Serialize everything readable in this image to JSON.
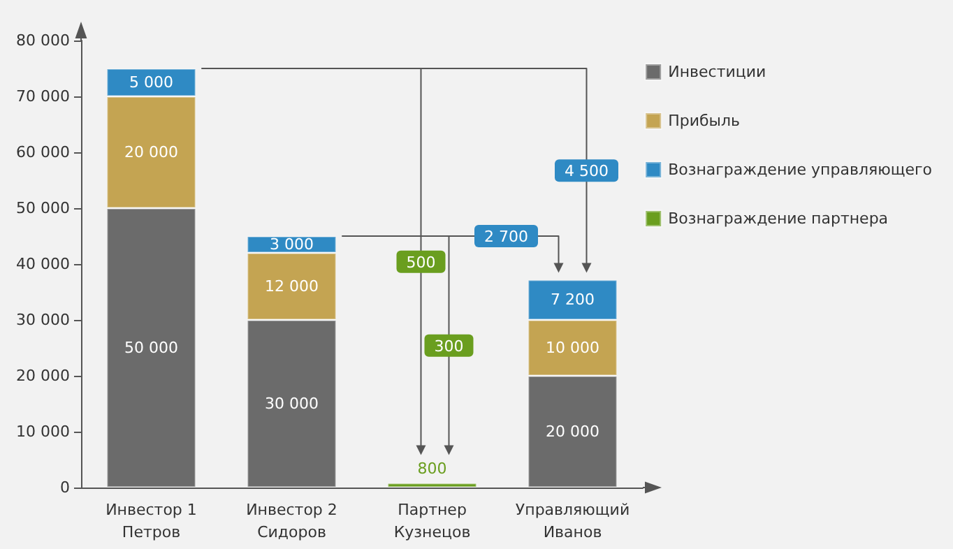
{
  "chart_data": {
    "type": "bar",
    "stacked": true,
    "categories": [
      "Инвестор 1\nПетров",
      "Инвестор 2\nСидоров",
      "Партнер\nКузнецов",
      "Управляющий\nИванов"
    ],
    "series": [
      {
        "name": "Инвестиции",
        "color": "#6b6b6b",
        "values": [
          50000,
          30000,
          null,
          20000
        ],
        "value_labels": [
          "50 000",
          "30 000",
          null,
          "20 000"
        ]
      },
      {
        "name": "Прибыль",
        "color": "#c4a452",
        "values": [
          20000,
          12000,
          null,
          10000
        ],
        "value_labels": [
          "20 000",
          "12 000",
          null,
          "10 000"
        ]
      },
      {
        "name": "Вознаграждение управляющего",
        "color": "#2f8ac4",
        "values": [
          5000,
          3000,
          null,
          7200
        ],
        "value_labels": [
          "5 000",
          "3 000",
          null,
          "7 200"
        ]
      },
      {
        "name": "Вознаграждение партнера",
        "color": "#6a9e1f",
        "values": [
          null,
          null,
          800,
          null
        ],
        "value_labels": [
          null,
          null,
          "800",
          null
        ]
      }
    ],
    "ylim": [
      0,
      80000
    ],
    "yticks": [
      {
        "value": 0,
        "label": "0"
      },
      {
        "value": 10000,
        "label": "10 000"
      },
      {
        "value": 20000,
        "label": "20 000"
      },
      {
        "value": 30000,
        "label": "30 000"
      },
      {
        "value": 40000,
        "label": "40 000"
      },
      {
        "value": 50000,
        "label": "50 000"
      },
      {
        "value": 60000,
        "label": "60 000"
      },
      {
        "value": 70000,
        "label": "70 000"
      },
      {
        "value": 80000,
        "label": "80 000"
      }
    ],
    "grid": false,
    "legend": "right",
    "annotations": [
      "500",
      "4 500",
      "2 700",
      "300"
    ]
  }
}
